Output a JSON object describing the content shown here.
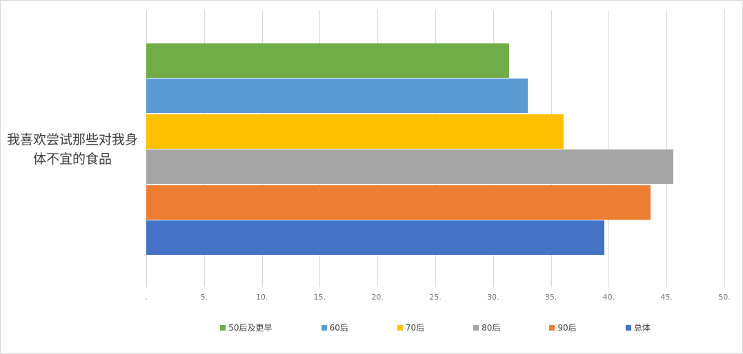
{
  "chart_data": {
    "type": "bar",
    "orientation": "horizontal",
    "title": "",
    "xlabel": "",
    "ylabel": "",
    "categories": [
      "我喜欢尝试那些对我身体不宜的食品"
    ],
    "series": [
      {
        "name": "50后及更早",
        "values": [
          31.4
        ],
        "color": "#70AD47"
      },
      {
        "name": "60后",
        "values": [
          33.0
        ],
        "color": "#5B9BD5"
      },
      {
        "name": "70后",
        "values": [
          36.1
        ],
        "color": "#FFC000"
      },
      {
        "name": "80后",
        "values": [
          45.6
        ],
        "color": "#ED7D31"
      },
      {
        "name": "90后",
        "values": [
          43.6
        ],
        "color": "#ED7D31"
      }
    ],
    "x_axis": {
      "min": 0,
      "max": 50,
      "step": 5,
      "tick_labels": [
        ".",
        "5.",
        "10.",
        "15.",
        "20.",
        "25.",
        "30.",
        "35.",
        "40.",
        "45.",
        "50."
      ]
    },
    "grid": true,
    "legend_position": "bottom",
    "colors": {
      "gridline": "#d9d9d9",
      "frame_border": "#d9d9d9",
      "tick_text": "#737373",
      "category_text": "#404040",
      "legend_text": "#404040"
    }
  }
}
